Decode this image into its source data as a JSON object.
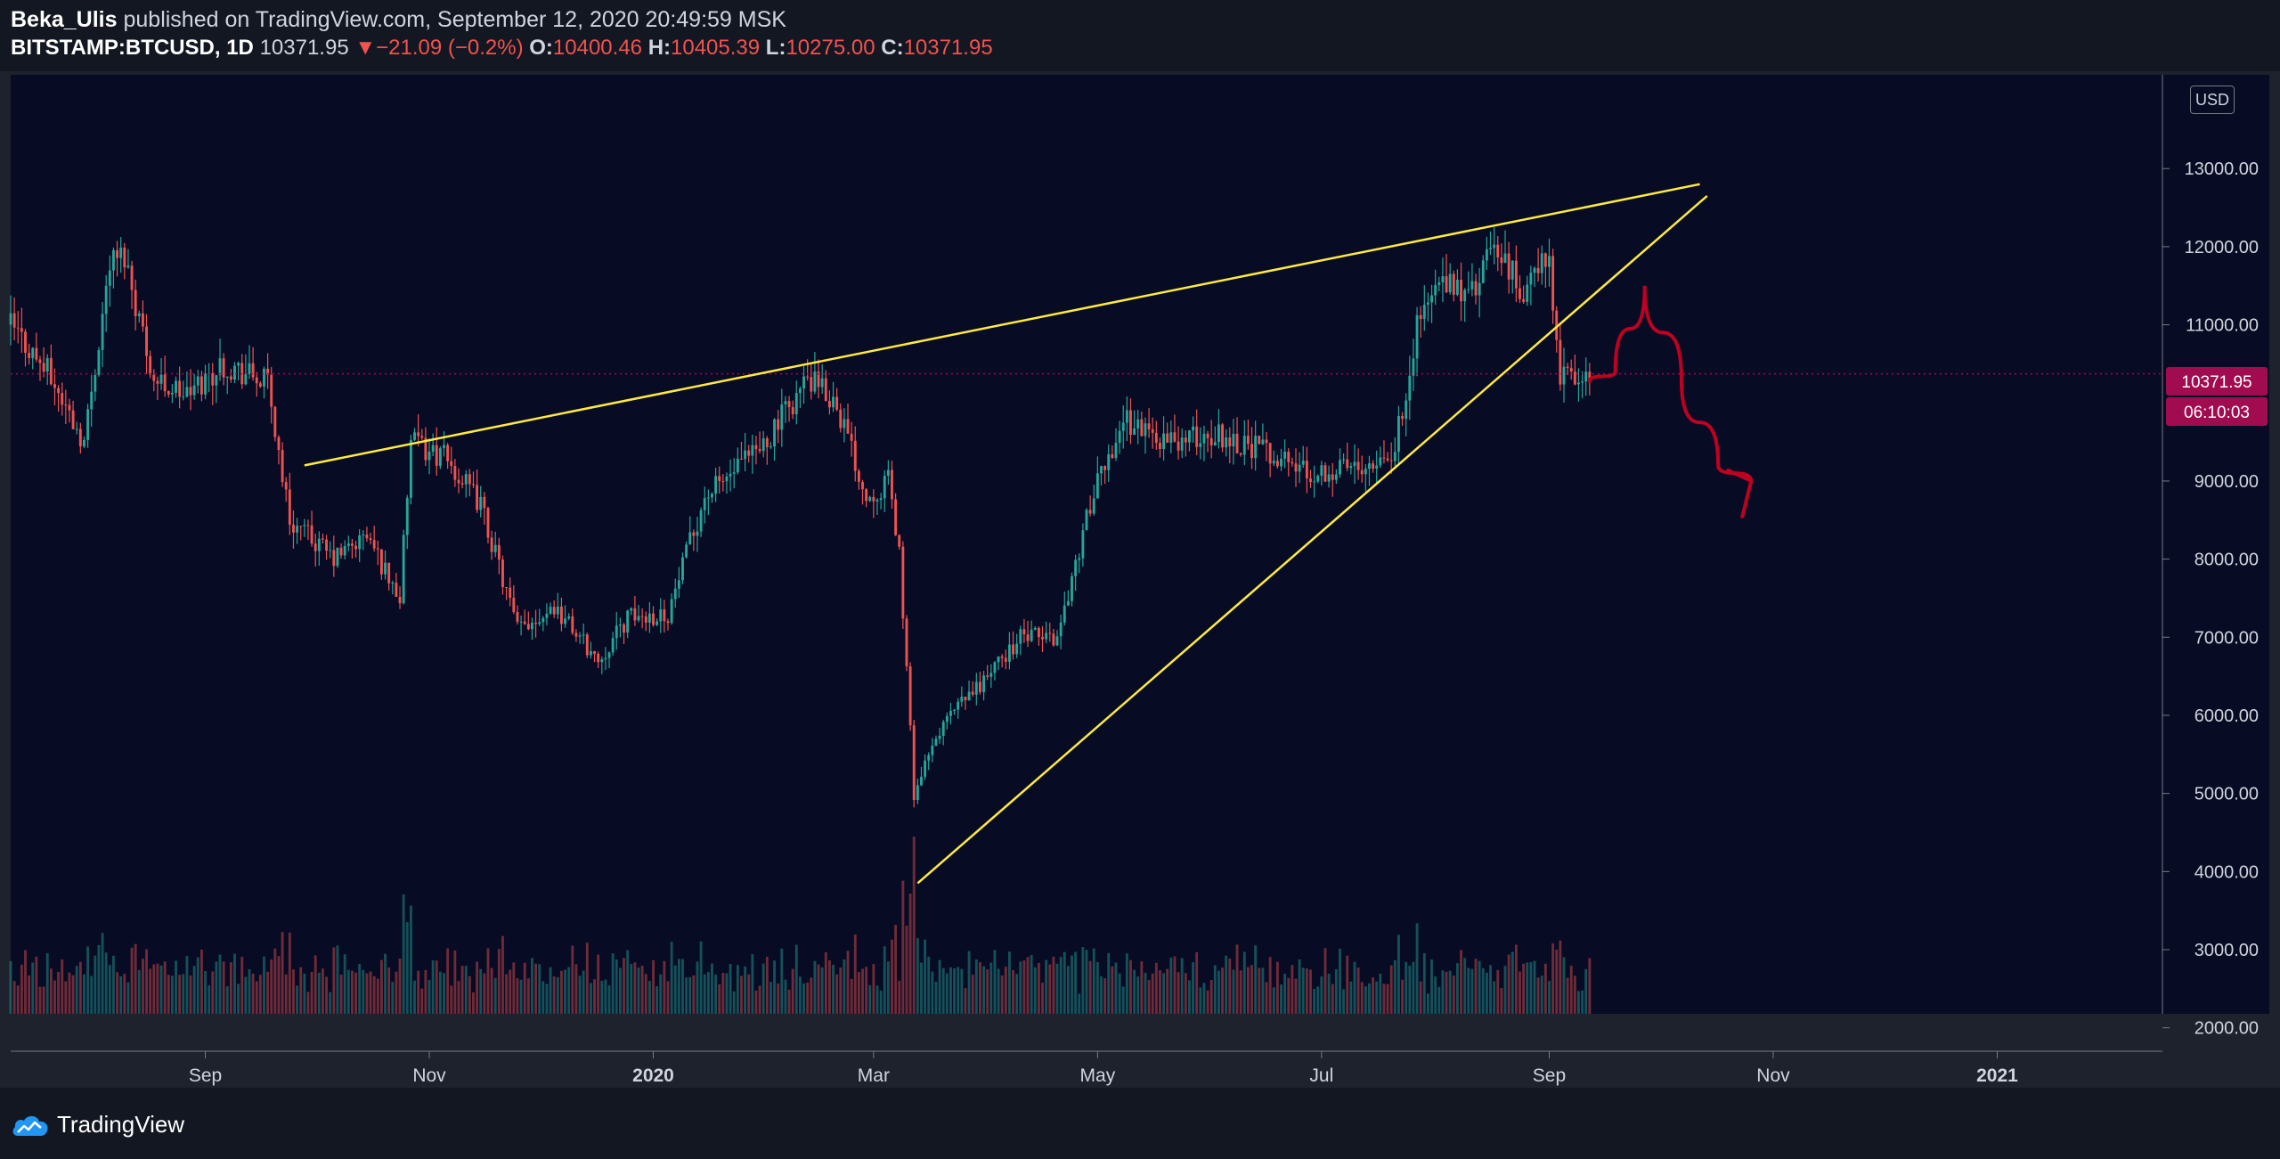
{
  "header": {
    "author": "Beka_Ulis",
    "published_text": "published on TradingView.com, September 12, 2020 20:49:59 MSK",
    "symbol": "BITSTAMP:BTCUSD, 1D",
    "last": "10371.95",
    "change_arrow": "▼",
    "change": "−21.09 (−0.2%)",
    "o_label": "O:",
    "o_value": "10400.46",
    "h_label": "H:",
    "h_value": "10405.39",
    "l_label": "L:",
    "l_value": "10275.00",
    "c_label": "C:",
    "c_value": "10371.95"
  },
  "currency_badge": "USD",
  "price_label": "10371.95",
  "countdown_label": "06:10:03",
  "footer": {
    "logo_text": "TradingView",
    "logo_icon": "tradingview-cloud-icon"
  },
  "colors": {
    "background": "#070b24",
    "up": "#26a69a",
    "down": "#ef5350",
    "trendline": "#ffeb3b",
    "drawing": "#c00020",
    "price_badge": "#a10b50"
  },
  "chart_data": {
    "type": "candlestick",
    "symbol": "BITSTAMP:BTCUSD",
    "interval": "1D",
    "x_range": [
      "2019-07-10",
      "2021-02-15"
    ],
    "ylim": [
      1700,
      14200
    ],
    "y_ticks": [
      2000,
      3000,
      4000,
      5000,
      6000,
      7000,
      8000,
      9000,
      10000,
      11000,
      12000,
      13000
    ],
    "y_tick_labels": [
      "2000.00",
      "3000.00",
      "4000.00",
      "5000.00",
      "6000.00",
      "7000.00",
      "8000.00",
      "9000.00",
      "11000.00",
      "12000.00",
      "13000.00"
    ],
    "x_ticks": [
      {
        "label": "Sep",
        "date": "2019-09-01"
      },
      {
        "label": "Nov",
        "date": "2019-11-01"
      },
      {
        "label": "2020",
        "date": "2020-01-01"
      },
      {
        "label": "Mar",
        "date": "2020-03-01"
      },
      {
        "label": "May",
        "date": "2020-05-01"
      },
      {
        "label": "Jul",
        "date": "2020-07-01"
      },
      {
        "label": "Sep",
        "date": "2020-09-01"
      },
      {
        "label": "Nov",
        "date": "2020-11-01"
      },
      {
        "label": "2021",
        "date": "2021-01-01"
      }
    ],
    "price_path": [
      [
        "2019-07-10",
        11000
      ],
      [
        "2019-07-20",
        10400
      ],
      [
        "2019-07-30",
        9500
      ],
      [
        "2019-08-06",
        11800
      ],
      [
        "2019-08-10",
        11900
      ],
      [
        "2019-08-18",
        10300
      ],
      [
        "2019-08-27",
        10100
      ],
      [
        "2019-09-06",
        10500
      ],
      [
        "2019-09-18",
        10250
      ],
      [
        "2019-09-24",
        8500
      ],
      [
        "2019-10-06",
        8000
      ],
      [
        "2019-10-15",
        8300
      ],
      [
        "2019-10-24",
        7500
      ],
      [
        "2019-10-27",
        9500
      ],
      [
        "2019-11-05",
        9300
      ],
      [
        "2019-11-15",
        8700
      ],
      [
        "2019-11-25",
        7100
      ],
      [
        "2019-12-05",
        7400
      ],
      [
        "2019-12-17",
        6700
      ],
      [
        "2019-12-25",
        7250
      ],
      [
        "2020-01-05",
        7300
      ],
      [
        "2020-01-15",
        8800
      ],
      [
        "2020-01-30",
        9400
      ],
      [
        "2020-02-12",
        10300
      ],
      [
        "2020-02-20",
        10000
      ],
      [
        "2020-02-28",
        8800
      ],
      [
        "2020-03-05",
        9000
      ],
      [
        "2020-03-08",
        8100
      ],
      [
        "2020-03-12",
        5000
      ],
      [
        "2020-03-20",
        5900
      ],
      [
        "2020-03-30",
        6400
      ],
      [
        "2020-04-10",
        7000
      ],
      [
        "2020-04-20",
        7000
      ],
      [
        "2020-04-29",
        8700
      ],
      [
        "2020-05-08",
        9800
      ],
      [
        "2020-05-20",
        9500
      ],
      [
        "2020-06-03",
        9600
      ],
      [
        "2020-06-15",
        9400
      ],
      [
        "2020-06-28",
        9100
      ],
      [
        "2020-07-10",
        9200
      ],
      [
        "2020-07-21",
        9400
      ],
      [
        "2020-07-27",
        11000
      ],
      [
        "2020-08-01",
        11500
      ],
      [
        "2020-08-11",
        11400
      ],
      [
        "2020-08-17",
        12000
      ],
      [
        "2020-08-25",
        11400
      ],
      [
        "2020-09-01",
        11900
      ],
      [
        "2020-09-04",
        10300
      ],
      [
        "2020-09-12",
        10372
      ]
    ],
    "annotations": {
      "upper_trendline": [
        [
          "2019-09-28",
          9200
        ],
        [
          "2020-10-12",
          12800
        ]
      ],
      "lower_trendline": [
        [
          "2020-03-13",
          3850
        ],
        [
          "2020-10-14",
          12650
        ]
      ],
      "last_price_line": 10371.95,
      "projection_path": [
        [
          "2020-09-12",
          10280
        ],
        [
          "2020-09-19",
          10400
        ],
        [
          "2020-09-27",
          11500
        ],
        [
          "2020-10-07",
          10300
        ],
        [
          "2020-10-17",
          9200
        ],
        [
          "2020-10-26",
          9000
        ]
      ]
    },
    "volume": "daily volume bars along bottom",
    "grid": false,
    "legend": "none"
  }
}
